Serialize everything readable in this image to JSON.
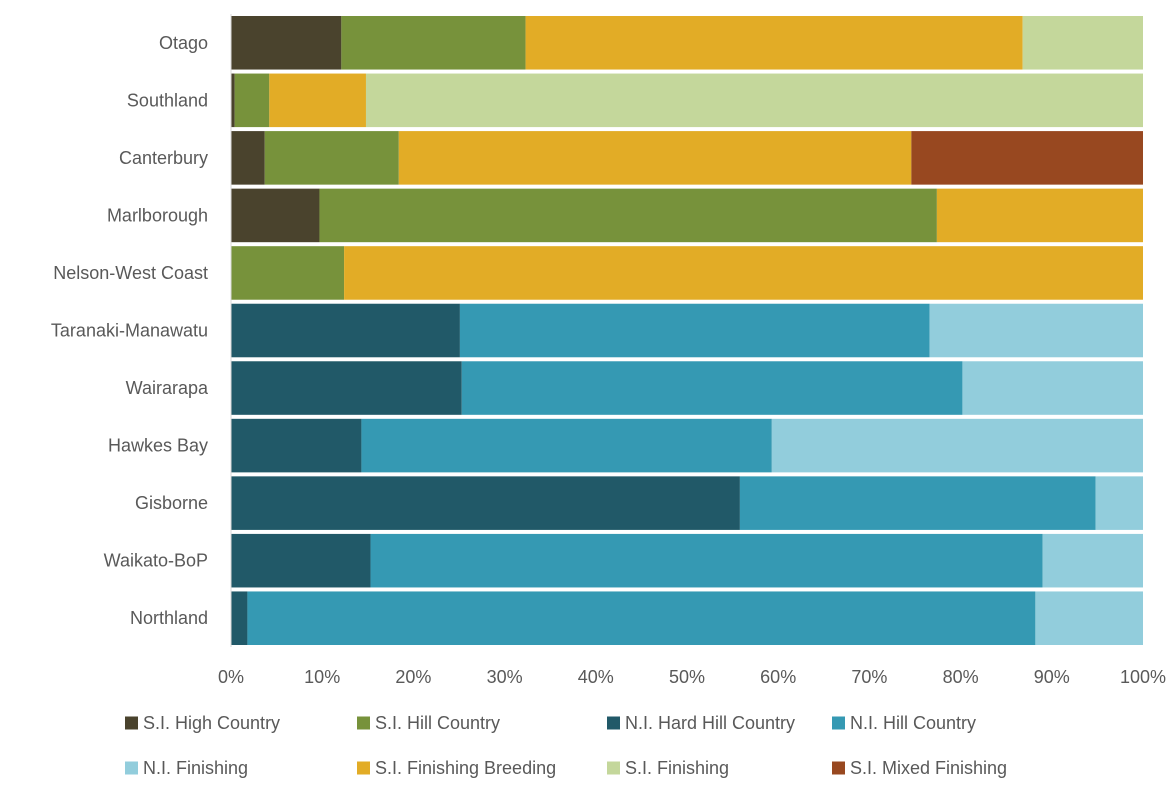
{
  "chart_data": {
    "type": "bar",
    "orientation": "horizontal",
    "stacked": "percent",
    "categories": [
      "Otago",
      "Southland",
      "Canterbury",
      "Marlborough",
      "Nelson-West Coast",
      "Taranaki-Manawatu",
      "Wairarapa",
      "Hawkes Bay",
      "Gisborne",
      "Waikato-BoP",
      "Northland"
    ],
    "xlim": [
      0,
      100
    ],
    "x_ticks": [
      "0%",
      "10%",
      "20%",
      "30%",
      "40%",
      "50%",
      "60%",
      "70%",
      "80%",
      "90%",
      "100%"
    ],
    "grid": false,
    "legend_position": "bottom",
    "series": [
      {
        "name": "S.I. High Country",
        "color": "#4a432d",
        "values": [
          12.1,
          0.4,
          3.7,
          9.7,
          0,
          0,
          0,
          0,
          0,
          0,
          0
        ]
      },
      {
        "name": "S.I. Hill Country",
        "color": "#77923b",
        "values": [
          20.2,
          3.8,
          14.7,
          67.7,
          12.4,
          0,
          0,
          0,
          0,
          0,
          0
        ]
      },
      {
        "name": "N.I. Hard Hill Country",
        "color": "#215968",
        "values": [
          0,
          0,
          0,
          0,
          0,
          25.1,
          25.3,
          14.3,
          55.8,
          15.3,
          1.8
        ]
      },
      {
        "name": "N.I. Hill Country",
        "color": "#3599b3",
        "values": [
          0,
          0,
          0,
          0,
          0,
          51.5,
          54.9,
          45.0,
          39.0,
          73.7,
          86.4
        ]
      },
      {
        "name": "N.I. Finishing",
        "color": "#92cddc",
        "values": [
          0,
          0,
          0,
          0,
          0,
          23.4,
          19.8,
          40.7,
          5.2,
          11.0,
          11.8
        ]
      },
      {
        "name": "S.I. Finishing Breeding",
        "color": "#e2ac26",
        "values": [
          54.5,
          10.6,
          56.2,
          22.6,
          87.6,
          0,
          0,
          0,
          0,
          0,
          0
        ]
      },
      {
        "name": "S.I. Finishing",
        "color": "#c4d79b",
        "values": [
          13.2,
          85.2,
          0,
          0,
          0,
          0,
          0,
          0,
          0,
          0,
          0
        ]
      },
      {
        "name": "S.I. Mixed Finishing",
        "color": "#984820",
        "values": [
          0,
          0,
          25.4,
          0,
          0,
          0,
          0,
          0,
          0,
          0,
          0
        ]
      }
    ]
  }
}
